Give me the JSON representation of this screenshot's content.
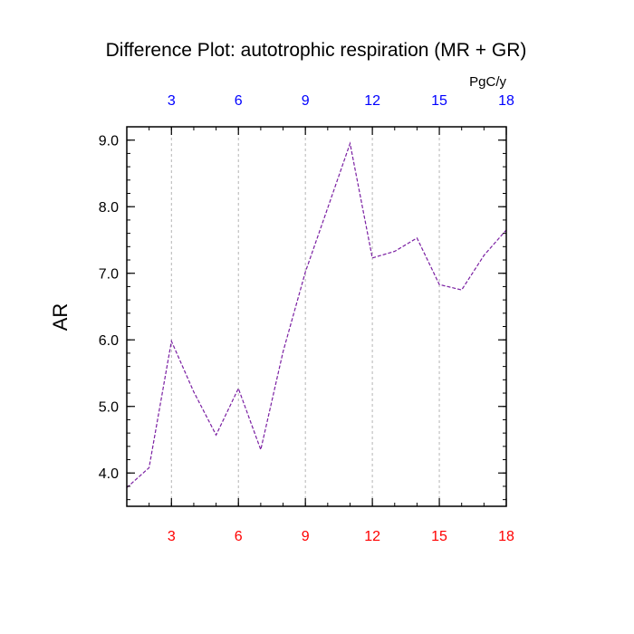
{
  "chart_data": {
    "type": "line",
    "title": "Difference Plot: autotrophic respiration (MR + GR)",
    "ylabel": "AR",
    "xlabel": "",
    "top_axis_unit": "PgC/y",
    "x": [
      1,
      2,
      3,
      4,
      5,
      6,
      7,
      8,
      9,
      10,
      11,
      12,
      13,
      14,
      15,
      16,
      17,
      18
    ],
    "series": [
      {
        "values": [
          3.78,
          4.08,
          5.98,
          5.22,
          4.57,
          5.27,
          4.35,
          5.82,
          7.02,
          7.98,
          8.95,
          7.23,
          7.33,
          7.53,
          6.83,
          6.75,
          7.27,
          7.65
        ]
      }
    ],
    "xlim": [
      1,
      18
    ],
    "ylim": [
      3.5,
      9.2
    ],
    "x_ticks_bottom": [
      "3",
      "6",
      "9",
      "12",
      "15",
      "18"
    ],
    "x_ticks_top": [
      "3",
      "6",
      "9",
      "12",
      "15",
      "18"
    ],
    "y_ticks": [
      "4.0",
      "5.0",
      "6.0",
      "7.0",
      "8.0",
      "9.0"
    ],
    "colors": {
      "line": "#7a1fa2",
      "bottom_ticks": "#ff0000",
      "top_ticks": "#0000ff",
      "grid": "#b5b5b5"
    },
    "grid": "vertical dashed at major x ticks",
    "line_style": "dashed"
  }
}
